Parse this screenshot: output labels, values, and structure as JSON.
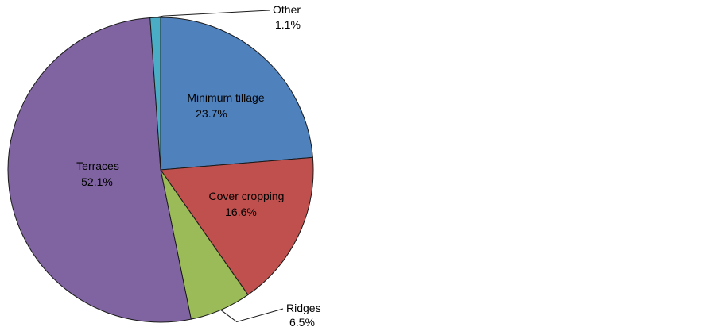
{
  "chart_data": {
    "type": "pie",
    "title": "",
    "slices": [
      {
        "name": "Minimum tillage",
        "value": 23.7,
        "label": "23.7%",
        "color": "#4F81BD"
      },
      {
        "name": "Cover cropping",
        "value": 16.6,
        "label": "16.6%",
        "color": "#C0504D"
      },
      {
        "name": "Ridges",
        "value": 6.5,
        "label": "6.5%",
        "color": "#9BBB59"
      },
      {
        "name": "Terraces",
        "value": 52.1,
        "label": "52.1%",
        "color": "#8064A2"
      },
      {
        "name": "Other",
        "value": 1.1,
        "label": "1.1%",
        "color": "#4BACC6"
      }
    ],
    "legend": "none",
    "border_color": "#1a1a1a"
  }
}
